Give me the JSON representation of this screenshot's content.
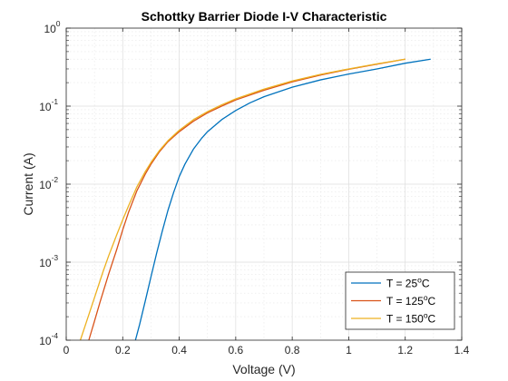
{
  "chart_data": {
    "type": "line",
    "title": "Schottky Barrier Diode I-V Characteristic",
    "xlabel": "Voltage (V)",
    "ylabel": "Current (A)",
    "xlim": [
      0,
      1.4
    ],
    "ylim": [
      0.0001,
      1
    ],
    "yscale": "log",
    "grid": true,
    "minor_grid": true,
    "legend_position": "bottom-right",
    "x_ticks": [
      {
        "value": 0,
        "label": "0"
      },
      {
        "value": 0.2,
        "label": "0.2"
      },
      {
        "value": 0.4,
        "label": "0.4"
      },
      {
        "value": 0.6,
        "label": "0.6"
      },
      {
        "value": 0.8,
        "label": "0.8"
      },
      {
        "value": 1,
        "label": "1"
      },
      {
        "value": 1.2,
        "label": "1.2"
      },
      {
        "value": 1.4,
        "label": "1.4"
      }
    ],
    "y_ticks": [
      {
        "value": 0.0001,
        "base": "10",
        "exp": "-4"
      },
      {
        "value": 0.001,
        "base": "10",
        "exp": "-3"
      },
      {
        "value": 0.01,
        "base": "10",
        "exp": "-2"
      },
      {
        "value": 0.1,
        "base": "10",
        "exp": "-1"
      },
      {
        "value": 1,
        "base": "10",
        "exp": "0"
      }
    ],
    "series": [
      {
        "name": "T = 25",
        "name_sup": "o",
        "name_suffix": "C",
        "color": "#0072BD",
        "x": [
          0.245,
          0.26,
          0.28,
          0.3,
          0.32,
          0.34,
          0.36,
          0.38,
          0.4,
          0.42,
          0.45,
          0.48,
          0.5,
          0.55,
          0.6,
          0.65,
          0.7,
          0.8,
          0.9,
          1.0,
          1.1,
          1.2,
          1.29
        ],
        "y": [
          0.0001,
          0.00016,
          0.00032,
          0.00065,
          0.0013,
          0.0025,
          0.0046,
          0.0078,
          0.0125,
          0.018,
          0.028,
          0.039,
          0.047,
          0.067,
          0.088,
          0.11,
          0.132,
          0.175,
          0.217,
          0.258,
          0.3,
          0.355,
          0.4
        ]
      },
      {
        "name": "T = 125",
        "name_sup": "o",
        "name_suffix": "C",
        "color": "#D95319",
        "x": [
          0.08,
          0.1,
          0.12,
          0.15,
          0.18,
          0.2,
          0.22,
          0.25,
          0.28,
          0.3,
          0.33,
          0.36,
          0.4,
          0.45,
          0.5,
          0.55,
          0.6,
          0.7,
          0.8,
          0.9,
          1.0,
          1.1,
          1.2
        ],
        "y": [
          0.0001,
          0.000175,
          0.00031,
          0.0007,
          0.0015,
          0.0026,
          0.0043,
          0.0082,
          0.0135,
          0.018,
          0.026,
          0.035,
          0.047,
          0.064,
          0.082,
          0.1,
          0.12,
          0.16,
          0.205,
          0.25,
          0.297,
          0.345,
          0.4
        ]
      },
      {
        "name": "T = 150",
        "name_sup": "o",
        "name_suffix": "C",
        "color": "#EDB120",
        "x": [
          0.05,
          0.07,
          0.1,
          0.13,
          0.15,
          0.18,
          0.2,
          0.22,
          0.25,
          0.28,
          0.3,
          0.33,
          0.36,
          0.4,
          0.45,
          0.5,
          0.55,
          0.6,
          0.7,
          0.8,
          0.9,
          1.0,
          1.1,
          1.2
        ],
        "y": [
          0.0001,
          0.000165,
          0.00035,
          0.00075,
          0.0012,
          0.0023,
          0.0035,
          0.0052,
          0.0092,
          0.0145,
          0.019,
          0.027,
          0.036,
          0.049,
          0.067,
          0.085,
          0.104,
          0.124,
          0.165,
          0.21,
          0.255,
          0.3,
          0.348,
          0.4
        ]
      }
    ]
  }
}
